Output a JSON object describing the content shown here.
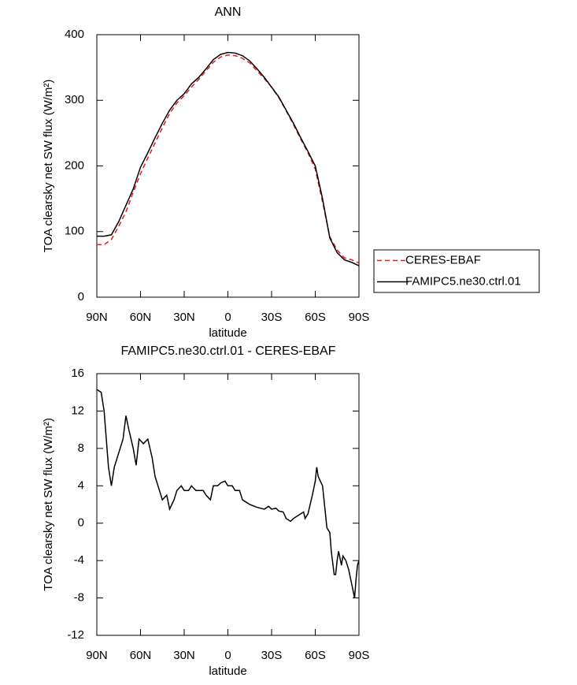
{
  "chart_data": [
    {
      "type": "line",
      "title": "ANN",
      "xlabel": "latitude",
      "ylabel": "TOA clearsky net SW flux (W/m²)",
      "x": [
        90,
        85,
        80,
        75,
        70,
        65,
        60,
        55,
        50,
        45,
        40,
        35,
        30,
        25,
        20,
        15,
        10,
        5,
        0,
        -5,
        -10,
        -15,
        -20,
        -25,
        -30,
        -35,
        -40,
        -45,
        -50,
        -55,
        -60,
        -65,
        -70,
        -75,
        -80,
        -85,
        -90
      ],
      "xlim": [
        90,
        -90
      ],
      "xticks": [
        {
          "value": 90,
          "label": "90N"
        },
        {
          "value": 60,
          "label": "60N"
        },
        {
          "value": 30,
          "label": "30N"
        },
        0,
        {
          "value": -30,
          "label": "30S"
        },
        {
          "value": -60,
          "label": "60S"
        },
        {
          "value": -90,
          "label": "90S"
        }
      ],
      "ylim": [
        0,
        400
      ],
      "yticks": [
        0,
        100,
        200,
        300,
        400
      ],
      "legend": "right",
      "series": [
        {
          "name": "CERES-EBAF",
          "color": "#e41a1c",
          "linestyle": "dashed",
          "values": [
            80,
            80,
            88,
            108,
            130,
            160,
            188,
            212,
            235,
            258,
            280,
            296,
            307,
            320,
            332,
            345,
            358,
            366,
            369,
            368,
            364,
            357,
            345,
            333,
            320,
            304,
            284,
            263,
            241,
            220,
            195,
            145,
            92,
            72,
            60,
            57,
            52
          ]
        },
        {
          "name": "FAMIPC5.ne30.ctrl.01",
          "color": "#000000",
          "linestyle": "solid",
          "values": [
            93,
            93,
            95,
            115,
            140,
            165,
            198,
            220,
            243,
            265,
            285,
            300,
            310,
            325,
            335,
            348,
            362,
            370,
            373,
            372,
            368,
            360,
            348,
            335,
            320,
            305,
            285,
            265,
            243,
            222,
            200,
            150,
            90,
            68,
            57,
            53,
            48
          ]
        }
      ]
    },
    {
      "type": "line",
      "title": "FAMIPC5.ne30.ctrl.01 - CERES-EBAF",
      "xlabel": "latitude",
      "ylabel": "TOA clearsky net SW flux (W/m²)",
      "x": [
        90,
        87,
        85,
        82,
        80,
        78,
        75,
        72,
        70,
        68,
        65,
        63,
        61,
        58,
        55,
        52,
        50,
        47,
        45,
        42,
        40,
        37,
        35,
        32,
        30,
        27,
        25,
        22,
        20,
        17,
        15,
        12,
        10,
        7,
        5,
        2,
        0,
        -3,
        -5,
        -8,
        -10,
        -12,
        -15,
        -20,
        -25,
        -28,
        -30,
        -33,
        -35,
        -38,
        -40,
        -43,
        -45,
        -48,
        -50,
        -52,
        -53,
        -55,
        -58,
        -60,
        -61,
        -62,
        -65,
        -67,
        -68,
        -70,
        -71,
        -73,
        -74,
        -75,
        -76,
        -78,
        -79,
        -81,
        -83,
        -85,
        -87,
        -88,
        -89,
        -90
      ],
      "values": [
        14.3,
        14,
        12,
        6,
        4,
        6,
        7.5,
        9,
        11.5,
        10,
        8,
        6.2,
        9,
        8.5,
        9,
        7,
        5,
        3.5,
        2.5,
        3,
        1.5,
        2.5,
        3.5,
        4,
        3.5,
        3.5,
        4,
        3.5,
        3.5,
        3.5,
        3,
        2.5,
        4,
        4,
        4.3,
        4.5,
        4,
        4,
        3.5,
        3.5,
        2.5,
        2.3,
        2,
        1.7,
        1.5,
        1.8,
        1.5,
        1.6,
        1.3,
        1.2,
        0.5,
        0.2,
        0.5,
        0.8,
        1,
        1.2,
        0.5,
        1,
        3,
        4.5,
        6,
        5,
        4,
        1,
        -0.5,
        -1,
        -3,
        -5.5,
        -5.5,
        -4,
        -3,
        -4.5,
        -3.5,
        -4,
        -5,
        -6.5,
        -8,
        -6,
        -4.5,
        -4
      ],
      "color": "#000000",
      "xlim": [
        90,
        -90
      ],
      "xticks": [
        {
          "value": 90,
          "label": "90N"
        },
        {
          "value": 60,
          "label": "60N"
        },
        {
          "value": 30,
          "label": "30N"
        },
        0,
        {
          "value": -30,
          "label": "30S"
        },
        {
          "value": -60,
          "label": "60S"
        },
        {
          "value": -90,
          "label": "90S"
        }
      ],
      "ylim": [
        -12,
        16
      ],
      "yticks": [
        -12,
        -8,
        -4,
        0,
        4,
        8,
        12,
        16
      ]
    }
  ]
}
